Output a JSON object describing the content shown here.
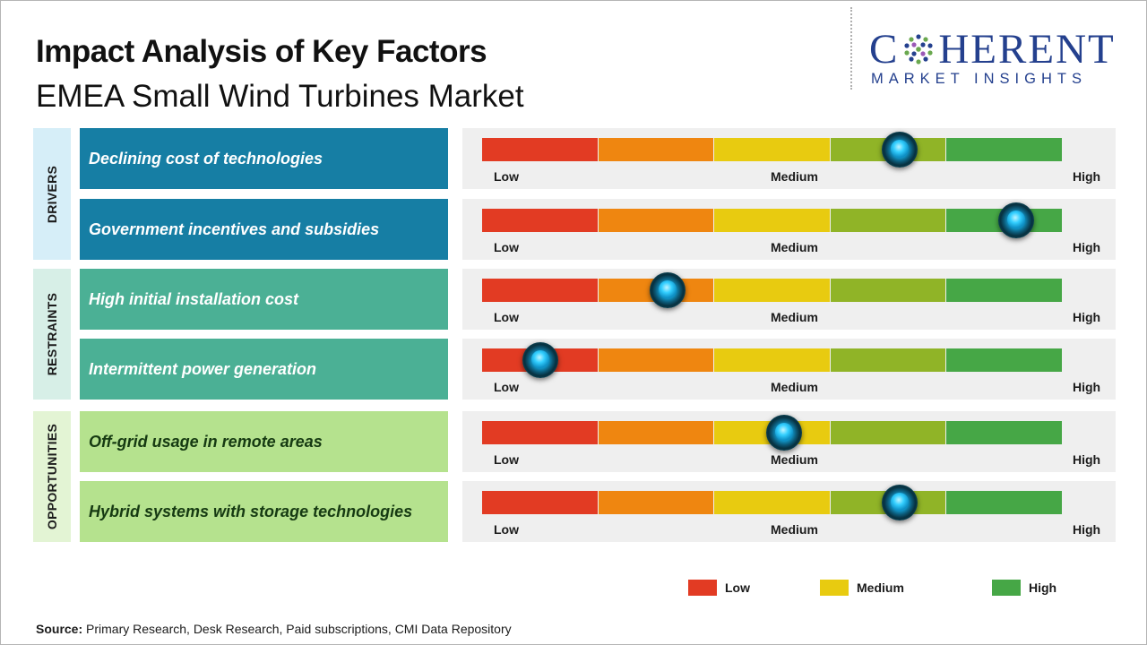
{
  "title": "Impact Analysis of Key Factors",
  "subtitle": "EMEA Small Wind Turbines Market",
  "logo": {
    "main_pre": "C",
    "main_post": "HERENT",
    "sub": "MARKET INSIGHTS"
  },
  "colors": {
    "drivers_factor": "#167ea4",
    "drivers_label_bg": "#d6eef8",
    "restraints_factor": "#4bb095",
    "restraints_label_bg": "#d7efe7",
    "opportunities_factor": "#b5e28e",
    "opportunities_label_bg": "#e3f4d4",
    "segments": [
      "#e23b23",
      "#ef8610",
      "#e8cb10",
      "#90b427",
      "#46a746"
    ]
  },
  "chart_data": {
    "type": "gauge",
    "title": "Impact Analysis of Key Factors",
    "subtitle": "EMEA Small Wind Turbines Market",
    "scale": {
      "min": 0,
      "max": 5,
      "segments": 5,
      "labels": [
        "Low",
        "Medium",
        "High"
      ]
    },
    "categories": [
      {
        "name": "DRIVERS",
        "key": "drivers"
      },
      {
        "name": "RESTRAINTS",
        "key": "restraints"
      },
      {
        "name": "OPPORTUNITIES",
        "key": "opportunities"
      }
    ],
    "factors": [
      {
        "category": "drivers",
        "label": "Declining cost of technologies",
        "impact": 3.6
      },
      {
        "category": "drivers",
        "label": "Government incentives and subsidies",
        "impact": 4.6
      },
      {
        "category": "restraints",
        "label": "High initial installation cost",
        "impact": 1.6
      },
      {
        "category": "restraints",
        "label": "Intermittent power generation",
        "impact": 0.5
      },
      {
        "category": "opportunities",
        "label": "Off-grid usage in remote areas",
        "impact": 2.6
      },
      {
        "category": "opportunities",
        "label": "Hybrid systems with storage technologies",
        "impact": 3.6
      }
    ],
    "legend": [
      {
        "label": "Low",
        "color": "#e23b23"
      },
      {
        "label": "Medium",
        "color": "#e8cb10"
      },
      {
        "label": "High",
        "color": "#46a746"
      }
    ]
  },
  "source": {
    "label": "Source:",
    "text": " Primary Research, Desk Research, Paid subscriptions, CMI Data Repository"
  }
}
